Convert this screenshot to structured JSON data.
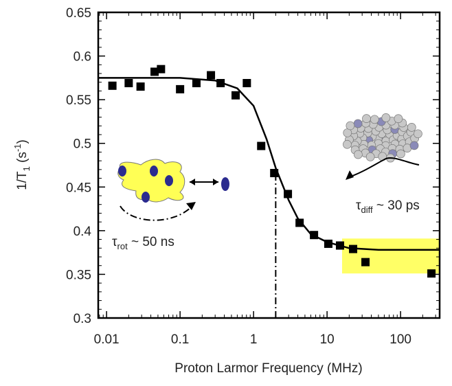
{
  "chart_data": {
    "type": "scatter",
    "ylabel": {
      "main": "1/T",
      "sub": "1",
      "mid": " (s",
      "sup": "-1",
      "end": ")"
    },
    "xlabel": "Proton Larmor Frequency (MHz)",
    "log_x": true,
    "xlim": [
      0.0077,
      340
    ],
    "ylim": [
      0.3,
      0.65
    ],
    "xticks": [
      0.01,
      0.1,
      1,
      10,
      100
    ],
    "yticks": [
      0.3,
      0.35,
      0.4,
      0.45,
      0.5,
      0.55,
      0.6,
      0.65
    ],
    "grid": false,
    "series": [
      {
        "type": "scatter",
        "color": "#000000",
        "x": [
          0.012,
          0.02,
          0.029,
          0.045,
          0.055,
          0.1,
          0.167,
          0.263,
          0.356,
          0.57,
          0.81,
          1.27,
          1.91,
          2.93,
          4.23,
          6.64,
          10.4,
          15.0,
          22.6,
          33.3,
          263
        ],
        "values": [
          0.566,
          0.569,
          0.565,
          0.582,
          0.585,
          0.562,
          0.569,
          0.578,
          0.569,
          0.555,
          0.569,
          0.497,
          0.466,
          0.442,
          0.409,
          0.395,
          0.385,
          0.383,
          0.379,
          0.364,
          0.351
        ]
      },
      {
        "type": "line",
        "color": "#000000",
        "x": [
          0.0077,
          0.1,
          0.3,
          0.6,
          1,
          1.5,
          2,
          3,
          4,
          6,
          10,
          20,
          50,
          340
        ],
        "values": [
          0.575,
          0.575,
          0.572,
          0.563,
          0.543,
          0.505,
          0.472,
          0.435,
          0.414,
          0.396,
          0.387,
          0.38,
          0.378,
          0.378
        ]
      }
    ],
    "dashed_line": {
      "x": 2,
      "y": 0.472
    },
    "highlight": {
      "x": [
        16,
        340
      ],
      "y": [
        0.351,
        0.391
      ],
      "color": "#ffff66"
    },
    "annotations": [
      {
        "symbol": "τ",
        "sub": "rot",
        "text": " ~ 50 ns"
      },
      {
        "symbol": "τ",
        "sub": "diff",
        "text": " ~ 30 ps"
      }
    ]
  }
}
